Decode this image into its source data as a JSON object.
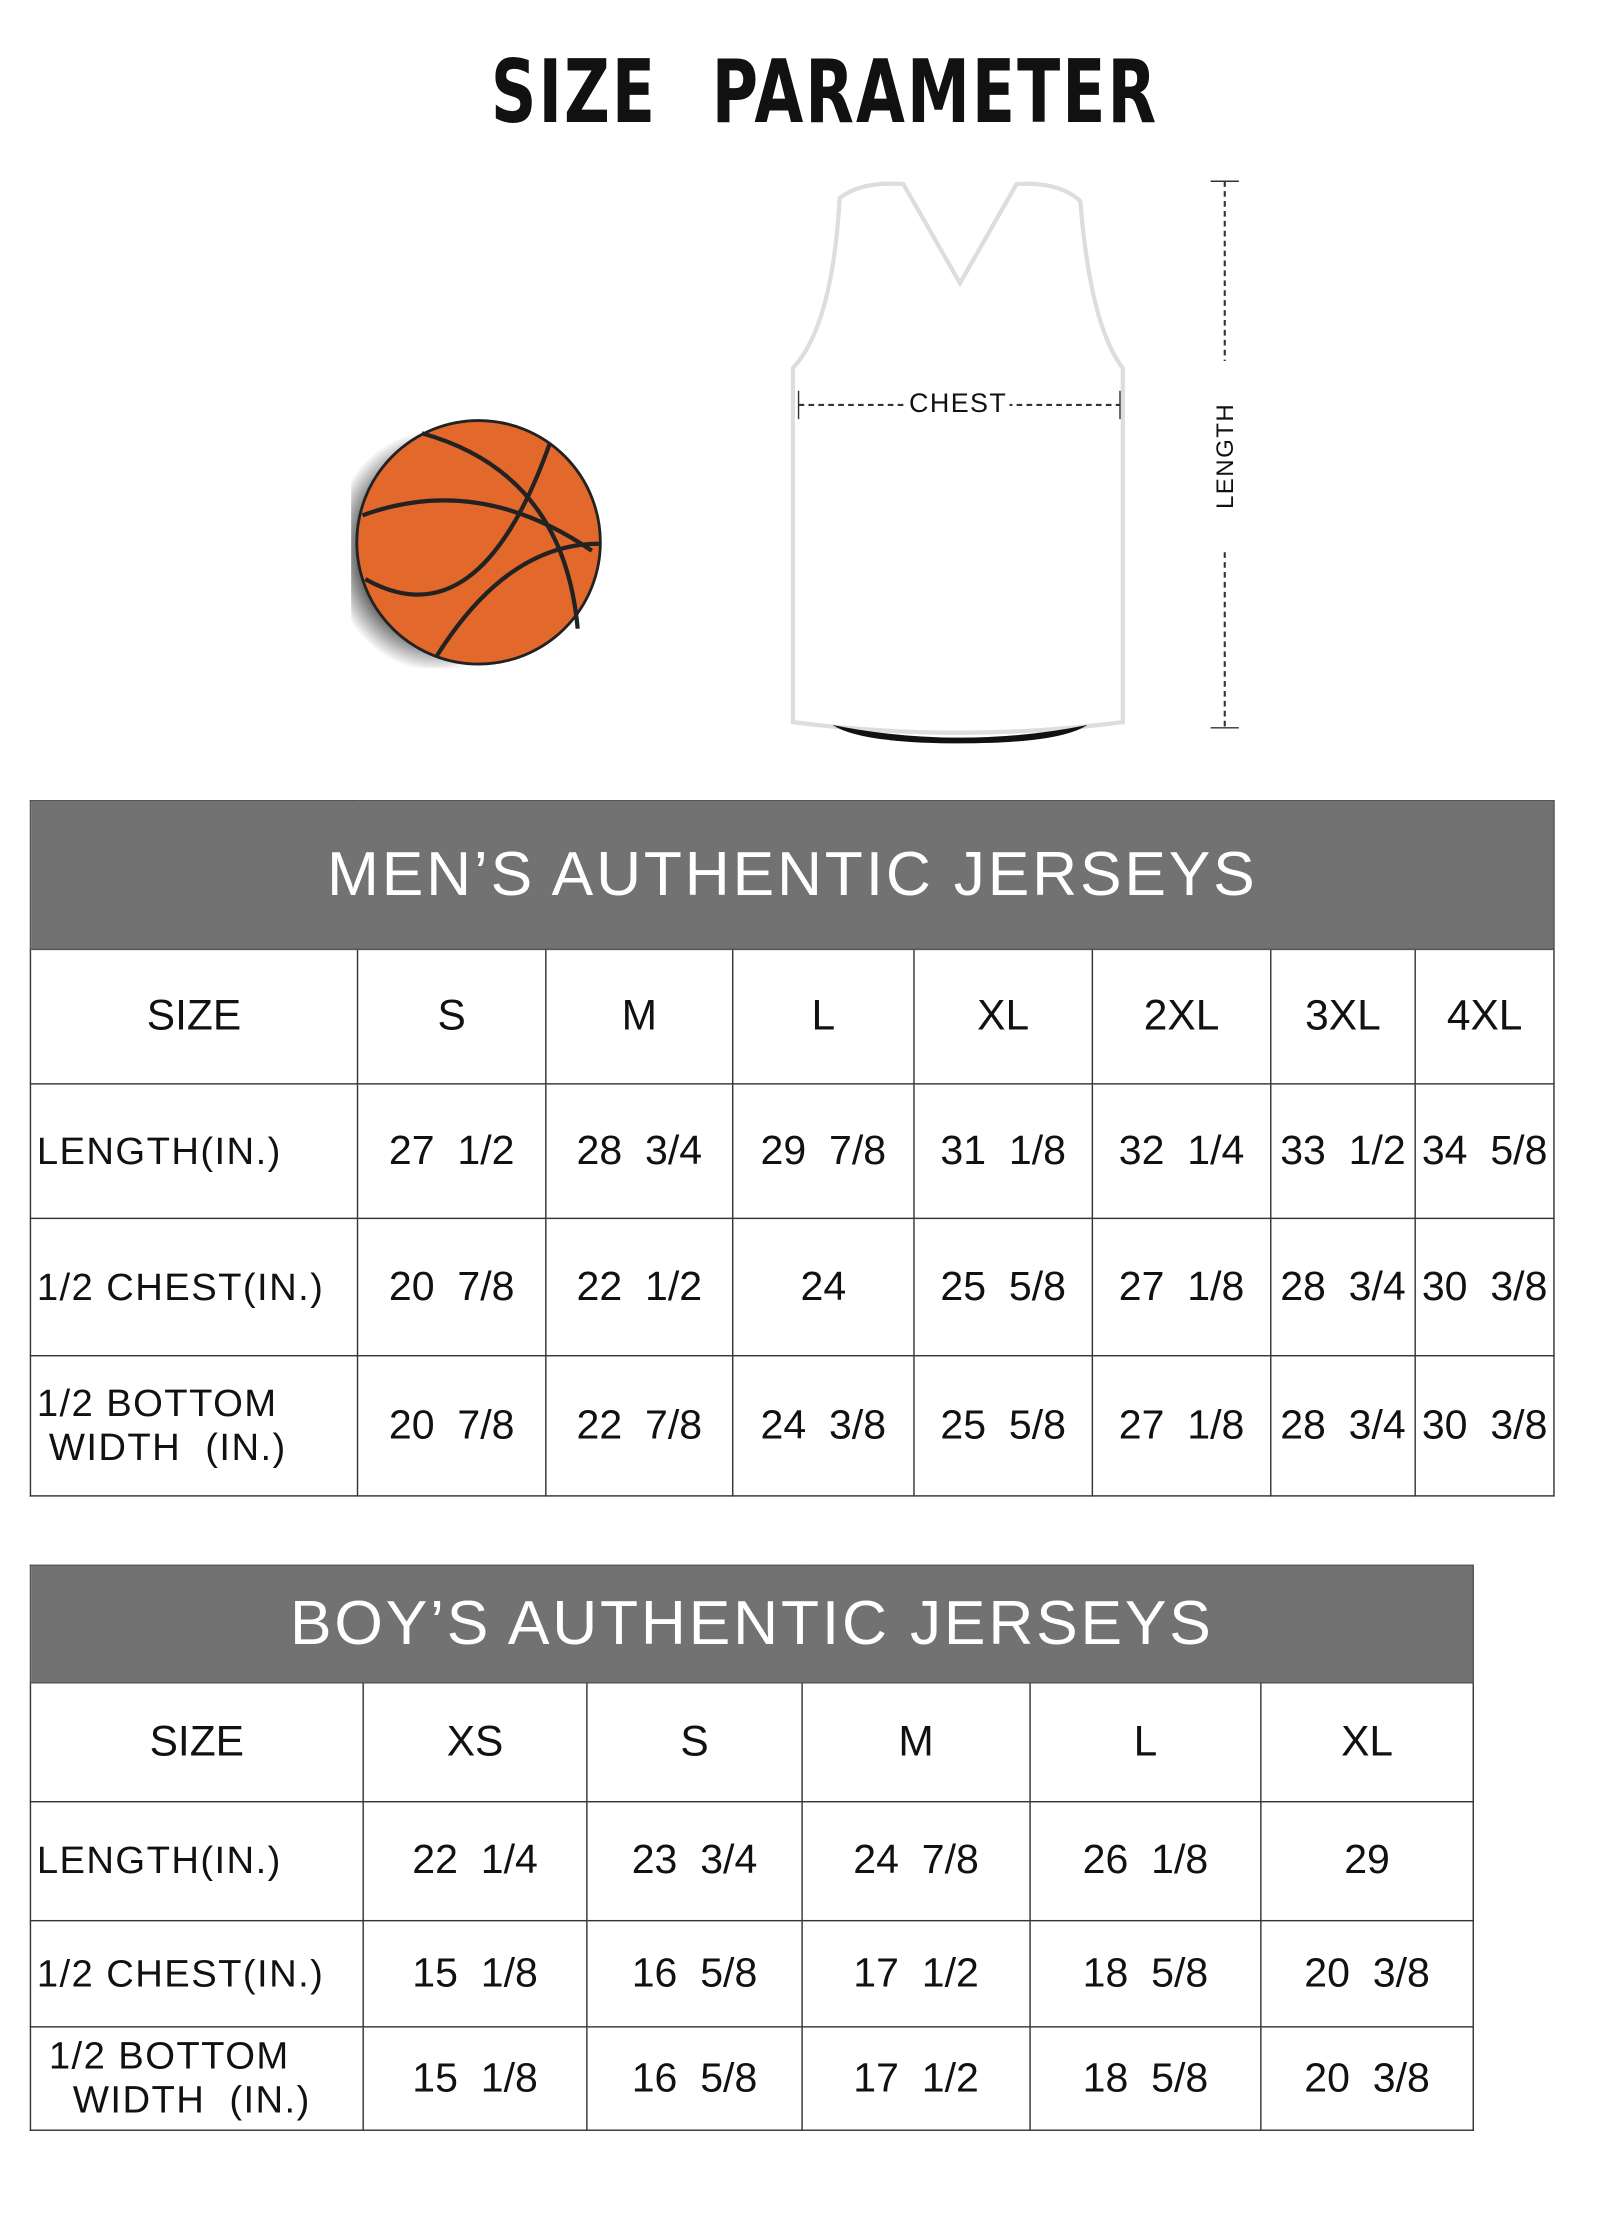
{
  "title": "SIZE  PARAMETER",
  "diagram": {
    "chest_label": "CHEST",
    "length_label": "LENGTH",
    "ball_color": "#e2692b",
    "header_color": "#727272"
  },
  "men": {
    "heading": "MEN’S AUTHENTIC JERSEYS",
    "size_label": "SIZE",
    "sizes": [
      "S",
      "M",
      "L",
      "XL",
      "2XL",
      "3XL",
      "4XL"
    ],
    "rows": [
      {
        "label": "LENGTH(IN.)",
        "values": [
          "27  1/2",
          "28  3/4",
          "29  7/8",
          "31  1/8",
          "32  1/4",
          "33  1/2",
          "34  5/8"
        ]
      },
      {
        "label": "1/2 CHEST(IN.)",
        "values": [
          "20  7/8",
          "22  1/2",
          "24",
          "25  5/8",
          "27  1/8",
          "28  3/4",
          "30  3/8"
        ]
      },
      {
        "label": "1/2 BOTTOM\n WIDTH  (IN.)",
        "values": [
          "20  7/8",
          "22  7/8",
          "24  3/8",
          "25  5/8",
          "27  1/8",
          "28  3/4",
          "30  3/8"
        ]
      }
    ]
  },
  "boy": {
    "heading": "BOY’S AUTHENTIC JERSEYS",
    "size_label": "SIZE",
    "sizes": [
      "XS",
      "S",
      "M",
      "L",
      "XL"
    ],
    "rows": [
      {
        "label": "LENGTH(IN.)",
        "values": [
          "22  1/4",
          "23  3/4",
          "24  7/8",
          "26  1/8",
          "29"
        ]
      },
      {
        "label": "1/2 CHEST(IN.)",
        "values": [
          "15  1/8",
          "16  5/8",
          "17  1/2",
          "18  5/8",
          "20  3/8"
        ]
      },
      {
        "label": " 1/2 BOTTOM\n   WIDTH  (IN.)",
        "values": [
          "15  1/8",
          "16  5/8",
          "17  1/2",
          "18  5/8",
          "20  3/8"
        ]
      }
    ]
  }
}
